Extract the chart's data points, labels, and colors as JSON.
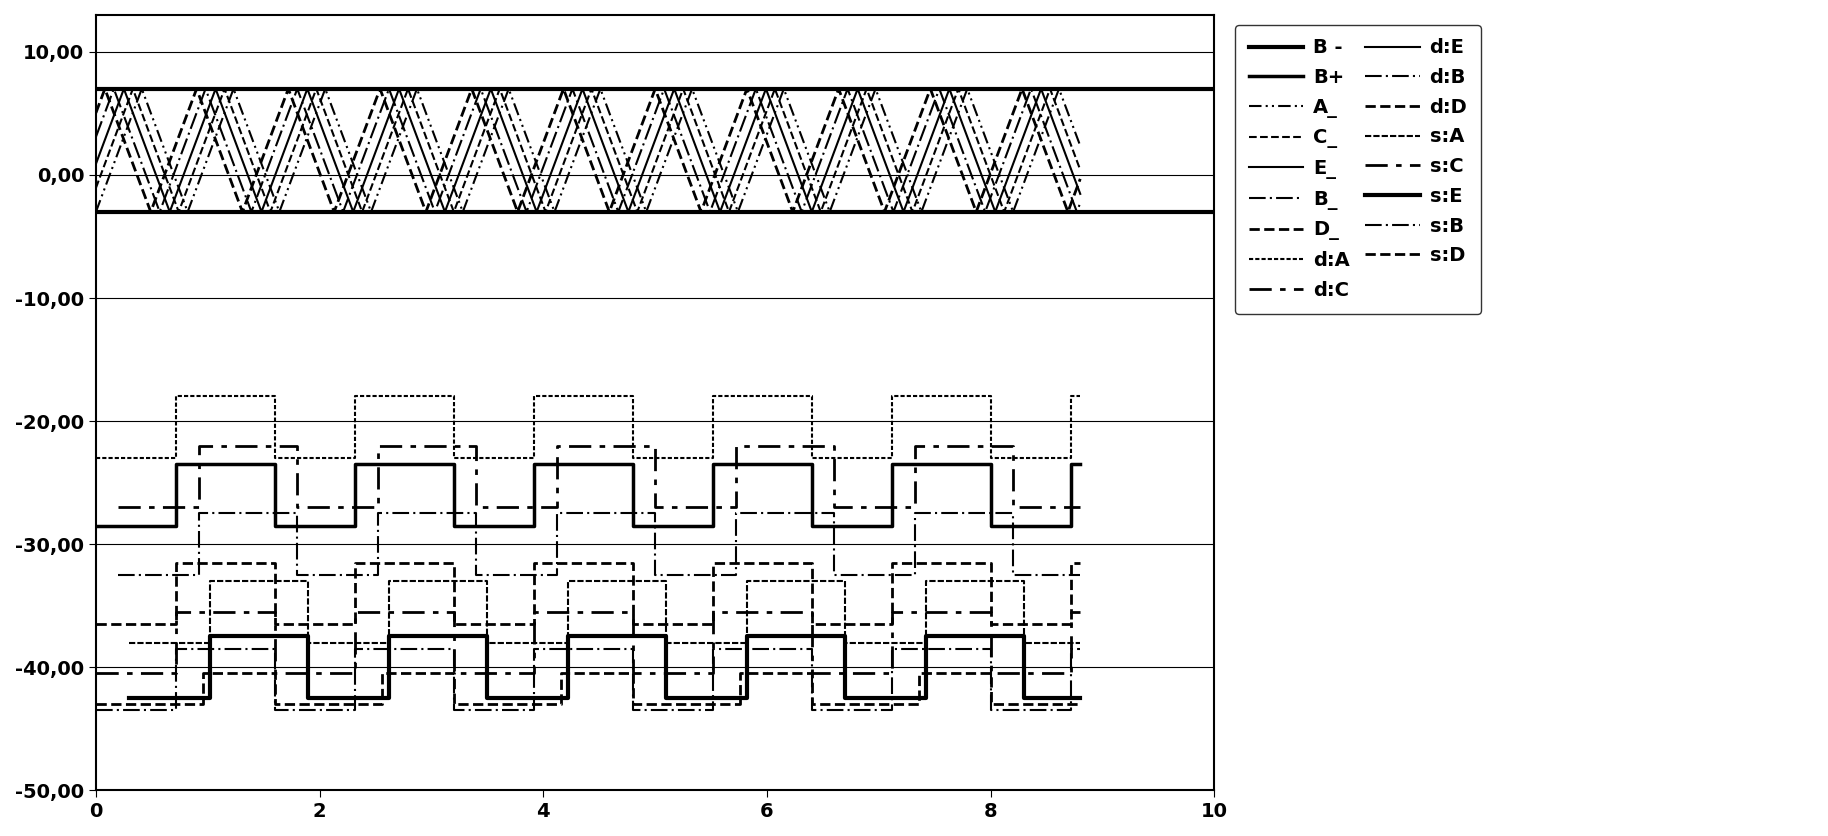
{
  "xlim": [
    0,
    10
  ],
  "ylim": [
    -50,
    13
  ],
  "yticks": [
    10,
    0,
    -10,
    -20,
    -30,
    -40,
    -50
  ],
  "ytick_labels": [
    "10,00",
    "0,00",
    "-10,00",
    "-20,00",
    "-30,00",
    "-40,00",
    "-50,00"
  ],
  "xticks": [
    0,
    2,
    4,
    6,
    8,
    10
  ],
  "B_minus_value": -3.0,
  "B_plus_value": 7.0,
  "osc_high": 7.0,
  "osc_low": -3.0,
  "x_end": 8.8,
  "period_osc": 0.82,
  "period_sq": 1.6,
  "lower_signals": {
    "d_A_hi": -18.0,
    "d_A_lo": -23.0,
    "d_C_hi": -22.0,
    "d_C_lo": -27.0,
    "d_E_hi": -23.5,
    "d_E_lo": -28.5,
    "d_B_hi": -27.5,
    "d_B_lo": -32.5,
    "d_D_hi": -31.5,
    "d_D_lo": -36.5,
    "s_A_hi": -33.0,
    "s_A_lo": -38.0,
    "s_C_hi": -35.5,
    "s_C_lo": -40.5,
    "s_E_hi": -37.5,
    "s_E_lo": -42.5,
    "s_B_hi": -38.5,
    "s_B_lo": -43.5,
    "s_D_hi": -40.5,
    "s_D_lo": -43.0
  },
  "background_color": "#ffffff",
  "line_color": "#000000"
}
